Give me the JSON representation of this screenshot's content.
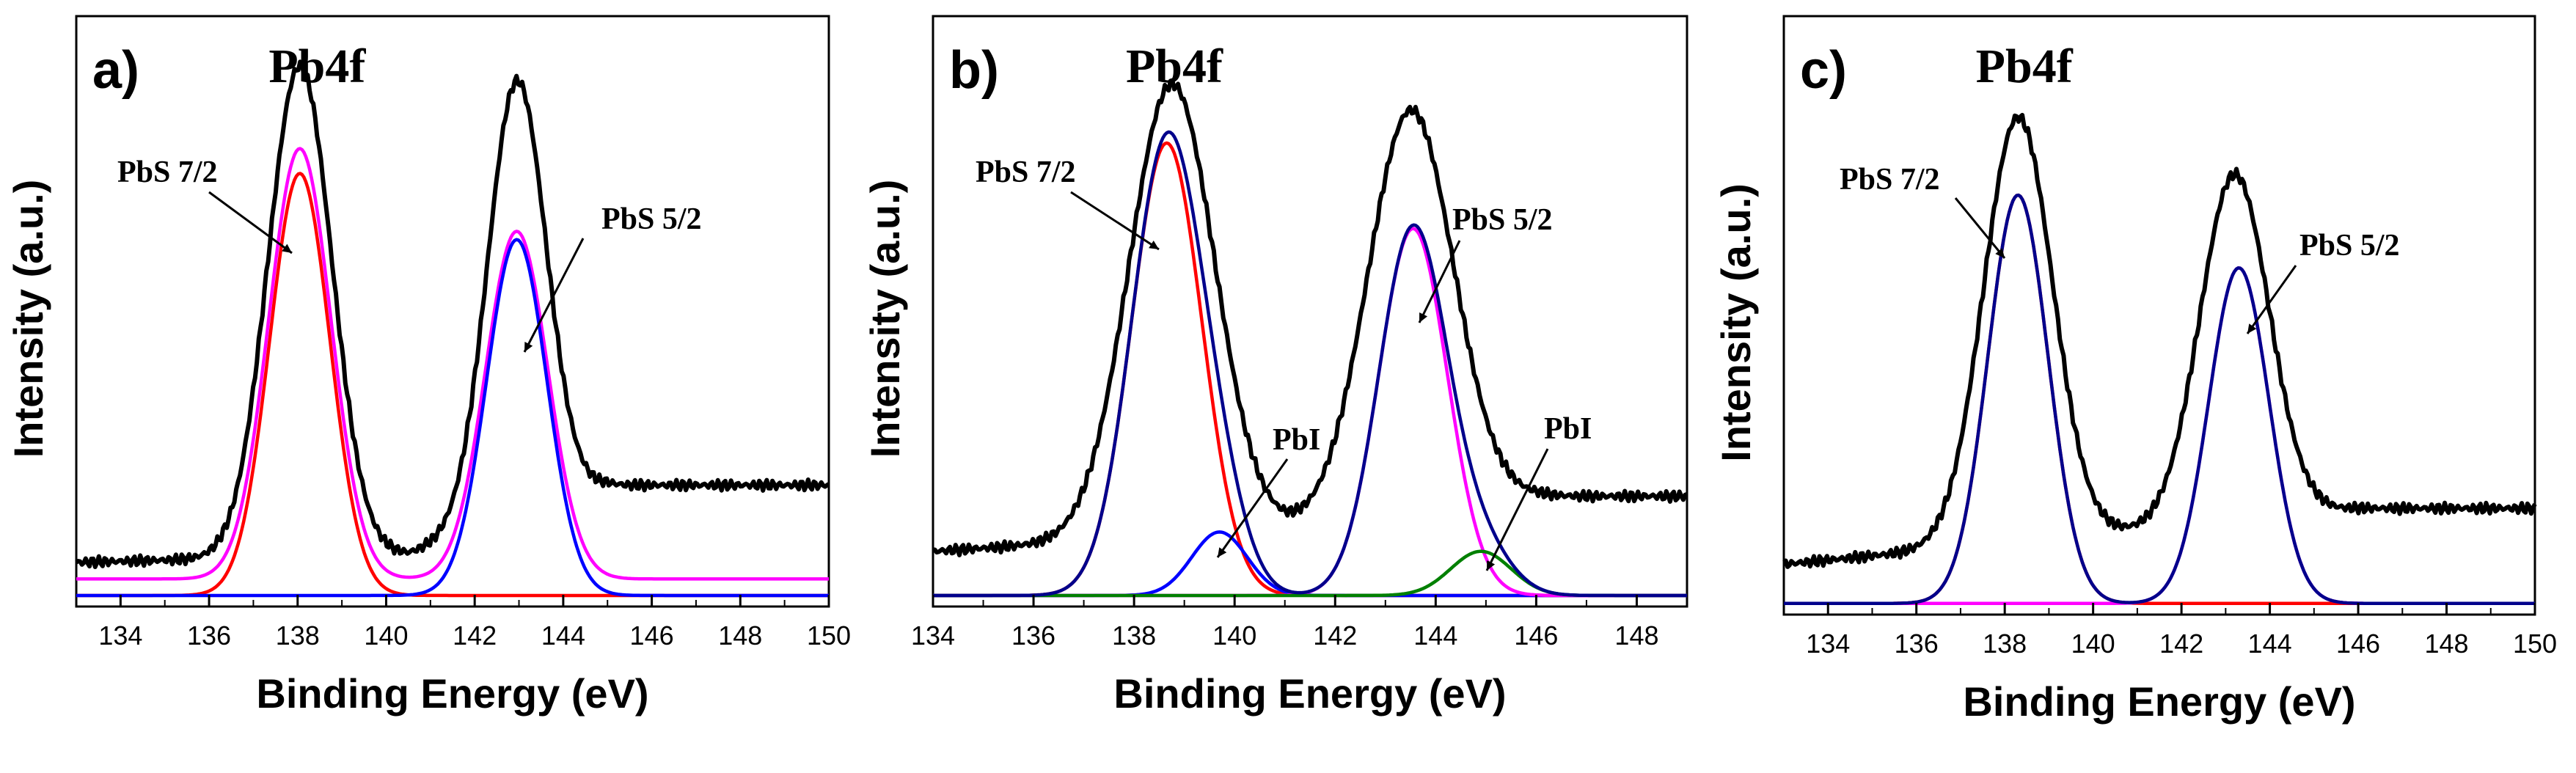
{
  "chart_data": [
    {
      "type": "line",
      "panel_label": "a)",
      "title": "Pb4f",
      "xlabel": "Binding Energy (eV)",
      "ylabel": "Intensity (a.u.)",
      "xlim": [
        133,
        150
      ],
      "xticks": [
        134,
        136,
        138,
        140,
        142,
        144,
        146,
        148,
        150
      ],
      "yticks_shown": false,
      "grid": false,
      "legend": "none",
      "series": [
        {
          "color": "#000000",
          "kind": "raw",
          "baseline": [
            [
              133,
              0.06
            ],
            [
              140.5,
              0.075
            ],
            [
              145,
              0.2
            ],
            [
              150,
              0.2
            ]
          ],
          "peaks": [
            [
              138.05,
              0.89,
              0.72
            ],
            [
              142.95,
              0.79,
              0.66
            ]
          ]
        },
        {
          "color": "#ff00ff",
          "kind": "envelope",
          "baseline": [
            [
              133,
              0.03
            ],
            [
              150,
              0.03
            ]
          ],
          "peaks": [
            [
              138.05,
              0.78,
              0.7
            ],
            [
              142.95,
              0.63,
              0.7
            ]
          ]
        },
        {
          "color": "#ff0000",
          "kind": "component",
          "baseline": [
            [
              133,
              0.0
            ],
            [
              150,
              0.0
            ]
          ],
          "peaks": [
            [
              138.05,
              0.765,
              0.68
            ]
          ]
        },
        {
          "color": "#0000ff",
          "kind": "component",
          "baseline": [
            [
              133,
              0.0
            ],
            [
              150,
              0.0
            ]
          ],
          "peaks": [
            [
              142.95,
              0.645,
              0.68
            ]
          ]
        }
      ],
      "annotations": [
        {
          "text": "PbS 7/2",
          "at": [
            138.05,
            0.79
          ]
        },
        {
          "text": "PbS 5/2",
          "at": [
            142.95,
            0.64
          ]
        }
      ]
    },
    {
      "type": "line",
      "panel_label": "b)",
      "title": "Pb4f",
      "xlabel": "Binding Energy (eV)",
      "ylabel": "Intensity (a.u.)",
      "xlim": [
        134,
        149
      ],
      "xticks": [
        134,
        136,
        138,
        140,
        142,
        144,
        146,
        148
      ],
      "yticks_shown": false,
      "grid": false,
      "legend": "none",
      "series": [
        {
          "color": "#000000",
          "kind": "raw",
          "baseline": [
            [
              134,
              0.08
            ],
            [
              141,
              0.12
            ],
            [
              146,
              0.18
            ],
            [
              149,
              0.18
            ]
          ],
          "peaks": [
            [
              138.75,
              0.82,
              0.85
            ],
            [
              143.5,
              0.73,
              0.85
            ]
          ]
        },
        {
          "color": "#ff0000",
          "kind": "component",
          "baseline": [
            [
              134,
              0.0
            ],
            [
              149,
              0.0
            ]
          ],
          "peaks": [
            [
              138.65,
              0.82,
              0.7
            ]
          ]
        },
        {
          "color": "#0000ff",
          "kind": "component",
          "baseline": [
            [
              134,
              0.0
            ],
            [
              149,
              0.0
            ]
          ],
          "peaks": [
            [
              139.7,
              0.115,
              0.55
            ]
          ]
        },
        {
          "color": "#ff00ff",
          "kind": "component",
          "baseline": [
            [
              134,
              0.0
            ],
            [
              149,
              0.0
            ]
          ],
          "peaks": [
            [
              143.55,
              0.665,
              0.68
            ]
          ]
        },
        {
          "color": "#008000",
          "kind": "component",
          "baseline": [
            [
              134,
              0.0
            ],
            [
              149,
              0.0
            ]
          ],
          "peaks": [
            [
              144.9,
              0.08,
              0.6
            ]
          ]
        },
        {
          "color": "#00008b",
          "kind": "envelope",
          "baseline": [
            [
              134,
              0.0
            ],
            [
              149,
              0.0
            ]
          ],
          "peaks": [
            [
              138.65,
              0.82,
              0.7
            ],
            [
              139.7,
              0.115,
              0.55
            ],
            [
              143.55,
              0.665,
              0.68
            ],
            [
              144.9,
              0.08,
              0.6
            ]
          ]
        }
      ],
      "annotations": [
        {
          "text": "PbS 7/2",
          "at": [
            138.55,
            0.8
          ]
        },
        {
          "text": "PbI",
          "at": [
            139.7,
            0.1
          ]
        },
        {
          "text": "PbS 5/2",
          "at": [
            143.55,
            0.65
          ]
        },
        {
          "text": "PbI",
          "at": [
            144.9,
            0.09
          ]
        }
      ]
    },
    {
      "type": "line",
      "panel_label": "c)",
      "title": "Pb4f",
      "xlabel": "Binding Energy (eV)",
      "ylabel": "Intensity (a.u.)",
      "xlim": [
        133,
        150
      ],
      "xticks": [
        134,
        136,
        138,
        140,
        142,
        144,
        146,
        148,
        150
      ],
      "yticks_shown": false,
      "grid": false,
      "legend": "none",
      "series": [
        {
          "color": "#000000",
          "kind": "raw",
          "baseline": [
            [
              133,
              0.07
            ],
            [
              141,
              0.13
            ],
            [
              146,
              0.17
            ],
            [
              150,
              0.17
            ]
          ],
          "peaks": [
            [
              138.3,
              0.76,
              0.78
            ],
            [
              143.2,
              0.62,
              0.78
            ]
          ]
        },
        {
          "color": "#ff0000",
          "kind": "component",
          "baseline": [
            [
              133,
              0.0
            ],
            [
              150,
              0.0
            ]
          ],
          "peaks": [
            [
              138.3,
              0.73,
              0.68
            ]
          ]
        },
        {
          "color": "#ff00ff",
          "kind": "component",
          "baseline": [
            [
              133,
              0.0
            ],
            [
              150,
              0.0
            ]
          ],
          "peaks": [
            [
              143.3,
              0.6,
              0.68
            ]
          ]
        },
        {
          "color": "#00008b",
          "kind": "envelope",
          "baseline": [
            [
              133,
              0.0
            ],
            [
              150,
              0.0
            ]
          ],
          "peaks": [
            [
              138.3,
              0.73,
              0.68
            ],
            [
              143.3,
              0.6,
              0.68
            ]
          ]
        }
      ],
      "annotations": [
        {
          "text": "PbS 7/2",
          "at": [
            138.3,
            0.75
          ]
        },
        {
          "text": "PbS 5/2",
          "at": [
            143.3,
            0.6
          ]
        }
      ]
    }
  ]
}
